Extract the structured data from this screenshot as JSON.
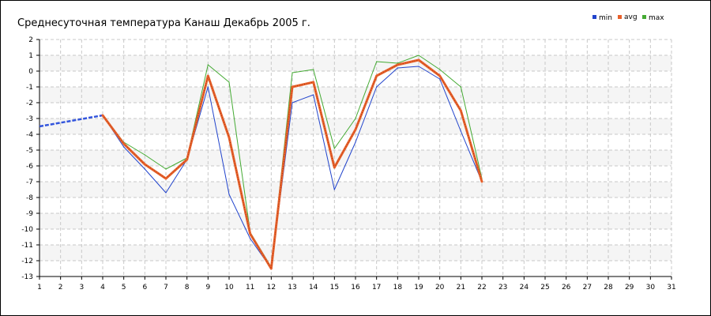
{
  "chart_data": {
    "type": "line",
    "title": "Среднесуточная температура Канаш  Декабрь 2005 г.",
    "xlabel": "",
    "ylabel": "",
    "xlim": [
      1,
      31
    ],
    "ylim": [
      -13,
      2
    ],
    "x_ticks": [
      1,
      2,
      3,
      4,
      5,
      6,
      7,
      8,
      9,
      10,
      11,
      12,
      13,
      14,
      15,
      16,
      17,
      18,
      19,
      20,
      21,
      22,
      23,
      24,
      25,
      26,
      27,
      28,
      29,
      30,
      31
    ],
    "y_ticks": [
      2,
      1,
      0,
      -1,
      -2,
      -3,
      -4,
      -5,
      -6,
      -7,
      -8,
      -9,
      -10,
      -11,
      -12,
      -13
    ],
    "grid": true,
    "legend": "top-right",
    "interpolated": {
      "name": "avg",
      "x": [
        1,
        4
      ],
      "values": [
        -3.5,
        -2.8
      ],
      "color": "#3355dd"
    },
    "series": [
      {
        "name": "min",
        "color": "#2244cc",
        "x": [
          4,
          5,
          6,
          7,
          8,
          9,
          10,
          11,
          12,
          13,
          14,
          15,
          16,
          17,
          18,
          19,
          20,
          21,
          22
        ],
        "values": [
          -2.8,
          -4.8,
          -6.2,
          -7.7,
          -5.6,
          -1.0,
          -7.8,
          -10.6,
          -12.5,
          -2.0,
          -1.5,
          -7.5,
          -4.5,
          -1.0,
          0.2,
          0.3,
          -0.5,
          -3.8,
          -7.0
        ]
      },
      {
        "name": "avg",
        "color": "#e8602a",
        "x": [
          4,
          5,
          6,
          7,
          8,
          9,
          10,
          11,
          12,
          13,
          14,
          15,
          16,
          17,
          18,
          19,
          20,
          21,
          22
        ],
        "values": [
          -2.8,
          -4.6,
          -5.9,
          -6.8,
          -5.6,
          -0.3,
          -4.2,
          -10.3,
          -12.5,
          -1.0,
          -0.7,
          -6.1,
          -3.7,
          -0.3,
          0.4,
          0.7,
          -0.3,
          -2.5,
          -7.0
        ]
      },
      {
        "name": "max",
        "color": "#44aa33",
        "x": [
          4,
          5,
          6,
          7,
          8,
          9,
          10,
          11,
          12,
          13,
          14,
          15,
          16,
          17,
          18,
          19,
          20,
          21,
          22
        ],
        "values": [
          -2.8,
          -4.5,
          -5.3,
          -6.2,
          -5.5,
          0.4,
          -0.7,
          -10.2,
          -12.4,
          -0.1,
          0.1,
          -4.9,
          -3.0,
          0.6,
          0.5,
          1.0,
          0.1,
          -1.0,
          -6.8
        ]
      }
    ]
  }
}
